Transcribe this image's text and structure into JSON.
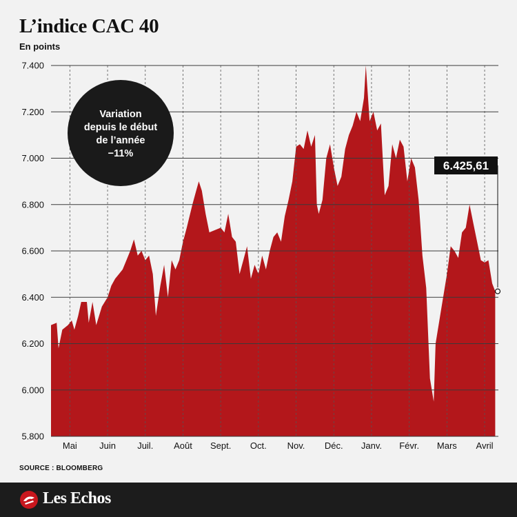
{
  "header": {
    "title": "L’indice CAC 40",
    "subtitle": "En points"
  },
  "annotation": {
    "line1": "Variation",
    "line2": "depuis le début",
    "line3": "de l’année",
    "line4": "−11%"
  },
  "last_value_label": "6.425,61",
  "source": "SOURCE : BLOOMBERG",
  "footer": {
    "brand": "Les Echos"
  },
  "colors": {
    "area": "#b3171b",
    "background": "#f2f2f2",
    "bubble": "#1a1a1a",
    "footer": "#1c1c1c"
  },
  "chart_data": {
    "type": "area",
    "title": "L’indice CAC 40",
    "ylabel": "En points",
    "ylim": [
      5800,
      7400
    ],
    "yticks": [
      5800,
      6000,
      6200,
      6400,
      6600,
      6800,
      7000,
      7200,
      7400
    ],
    "ytick_labels": [
      "5.800",
      "6.000",
      "6.200",
      "6.400",
      "6.600",
      "6.800",
      "7.000",
      "7.200",
      "7.400"
    ],
    "months": [
      "Mai",
      "Juin",
      "Juil.",
      "Août",
      "Sept.",
      "Oct.",
      "Nov.",
      "Déc.",
      "Janv.",
      "Févr.",
      "Mars",
      "Avril"
    ],
    "x_start": 0,
    "x_end": 12.45,
    "grid": true,
    "series": [
      {
        "values": [
          [
            0.0,
            6280
          ],
          [
            0.15,
            6290
          ],
          [
            0.2,
            6180
          ],
          [
            0.3,
            6260
          ],
          [
            0.45,
            6280
          ],
          [
            0.55,
            6300
          ],
          [
            0.62,
            6260
          ],
          [
            0.72,
            6320
          ],
          [
            0.8,
            6380
          ],
          [
            0.95,
            6380
          ],
          [
            1.0,
            6290
          ],
          [
            1.1,
            6380
          ],
          [
            1.2,
            6280
          ],
          [
            1.35,
            6360
          ],
          [
            1.5,
            6400
          ],
          [
            1.6,
            6450
          ],
          [
            1.7,
            6480
          ],
          [
            1.8,
            6500
          ],
          [
            1.9,
            6520
          ],
          [
            2.0,
            6560
          ],
          [
            2.1,
            6600
          ],
          [
            2.2,
            6650
          ],
          [
            2.3,
            6580
          ],
          [
            2.4,
            6600
          ],
          [
            2.5,
            6560
          ],
          [
            2.6,
            6580
          ],
          [
            2.7,
            6500
          ],
          [
            2.78,
            6320
          ],
          [
            2.9,
            6450
          ],
          [
            3.0,
            6540
          ],
          [
            3.1,
            6400
          ],
          [
            3.2,
            6560
          ],
          [
            3.3,
            6520
          ],
          [
            3.4,
            6560
          ],
          [
            3.5,
            6640
          ],
          [
            3.6,
            6700
          ],
          [
            3.75,
            6800
          ],
          [
            3.85,
            6860
          ],
          [
            3.92,
            6900
          ],
          [
            4.0,
            6860
          ],
          [
            4.1,
            6760
          ],
          [
            4.2,
            6680
          ],
          [
            4.35,
            6690
          ],
          [
            4.5,
            6700
          ],
          [
            4.6,
            6680
          ],
          [
            4.7,
            6760
          ],
          [
            4.8,
            6660
          ],
          [
            4.9,
            6640
          ],
          [
            5.0,
            6500
          ],
          [
            5.1,
            6560
          ],
          [
            5.2,
            6620
          ],
          [
            5.3,
            6480
          ],
          [
            5.4,
            6540
          ],
          [
            5.5,
            6500
          ],
          [
            5.6,
            6580
          ],
          [
            5.7,
            6520
          ],
          [
            5.8,
            6600
          ],
          [
            5.9,
            6660
          ],
          [
            6.0,
            6680
          ],
          [
            6.1,
            6640
          ],
          [
            6.2,
            6750
          ],
          [
            6.3,
            6820
          ],
          [
            6.4,
            6900
          ],
          [
            6.5,
            7050
          ],
          [
            6.6,
            7060
          ],
          [
            6.7,
            7040
          ],
          [
            6.8,
            7120
          ],
          [
            6.9,
            7050
          ],
          [
            7.0,
            7100
          ],
          [
            7.05,
            6800
          ],
          [
            7.1,
            6760
          ],
          [
            7.2,
            6820
          ],
          [
            7.3,
            7000
          ],
          [
            7.4,
            7060
          ],
          [
            7.5,
            6960
          ],
          [
            7.6,
            6880
          ],
          [
            7.7,
            6920
          ],
          [
            7.8,
            7040
          ],
          [
            7.9,
            7100
          ],
          [
            8.0,
            7140
          ],
          [
            8.1,
            7200
          ],
          [
            8.2,
            7160
          ],
          [
            8.3,
            7260
          ],
          [
            8.35,
            7400
          ],
          [
            8.45,
            7160
          ],
          [
            8.55,
            7200
          ],
          [
            8.65,
            7120
          ],
          [
            8.75,
            7150
          ],
          [
            8.85,
            6840
          ],
          [
            8.95,
            6880
          ],
          [
            9.05,
            7060
          ],
          [
            9.15,
            7000
          ],
          [
            9.25,
            7080
          ],
          [
            9.35,
            7050
          ],
          [
            9.45,
            6900
          ],
          [
            9.55,
            7000
          ],
          [
            9.65,
            6960
          ],
          [
            9.75,
            6820
          ],
          [
            9.85,
            6580
          ],
          [
            9.95,
            6440
          ],
          [
            10.05,
            6050
          ],
          [
            10.15,
            5950
          ],
          [
            10.2,
            6200
          ],
          [
            10.35,
            6350
          ],
          [
            10.5,
            6500
          ],
          [
            10.6,
            6620
          ],
          [
            10.7,
            6600
          ],
          [
            10.8,
            6570
          ],
          [
            10.9,
            6680
          ],
          [
            11.0,
            6700
          ],
          [
            11.1,
            6800
          ],
          [
            11.2,
            6720
          ],
          [
            11.3,
            6640
          ],
          [
            11.4,
            6560
          ],
          [
            11.5,
            6550
          ],
          [
            11.6,
            6560
          ],
          [
            11.7,
            6460
          ],
          [
            11.78,
            6425.61
          ]
        ]
      }
    ]
  }
}
